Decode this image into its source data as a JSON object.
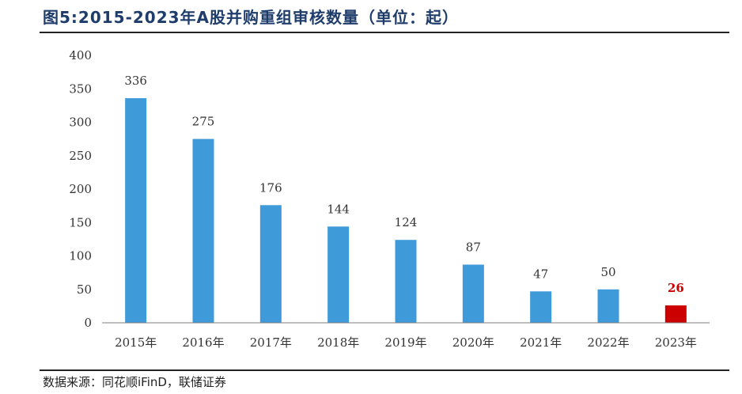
{
  "title": "图5:2015-2023年A股并购重组审核数量（单位：起）",
  "source": "数据来源：同花顺iFinD，联储证券",
  "colors": {
    "bar": "#3f9ad9",
    "highlight_bar": "#cc0000",
    "highlight_label": "#cc0000",
    "axis": "#7f7f7f",
    "title": "#1f3d6b"
  },
  "chart_data": {
    "type": "bar",
    "title": "图5:2015-2023年A股并购重组审核数量（单位：起）",
    "xlabel": "",
    "ylabel": "",
    "categories": [
      "2015年",
      "2016年",
      "2017年",
      "2018年",
      "2019年",
      "2020年",
      "2021年",
      "2022年",
      "2023年"
    ],
    "values": [
      336,
      275,
      176,
      144,
      124,
      87,
      47,
      50,
      26
    ],
    "data_labels": [
      "336",
      "275",
      "176",
      "144",
      "124",
      "87",
      "47",
      "50",
      "26"
    ],
    "highlight_index": 8,
    "ylim": [
      0,
      400
    ],
    "yticks": [
      0,
      50,
      100,
      150,
      200,
      250,
      300,
      350,
      400
    ],
    "ytick_labels": [
      "0",
      "50",
      "100",
      "150",
      "200",
      "250",
      "300",
      "350",
      "400"
    ],
    "grid": false,
    "legend": "none"
  }
}
